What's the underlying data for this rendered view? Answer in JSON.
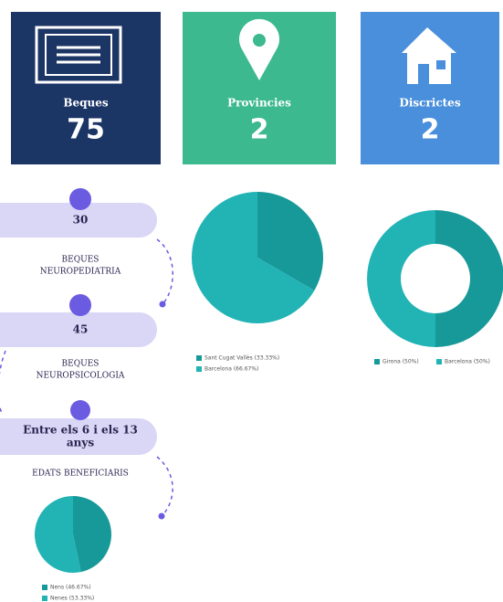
{
  "cards": [
    {
      "label": "Beques",
      "value": "75"
    },
    {
      "label": "Provincies",
      "value": "2"
    },
    {
      "label": "Discrictes",
      "value": "2"
    }
  ],
  "steps": [
    {
      "value": [
        "30"
      ],
      "label": [
        "BEQUES",
        "NEUROPEDIATRIA"
      ]
    },
    {
      "value": [
        "45"
      ],
      "label": [
        "BEQUES",
        "NEUROPSICOLOGIA"
      ]
    },
    {
      "value": [
        "Entre els 6  i els 13",
        "anys"
      ],
      "label": [
        "EDATS  BENEFICIARIS"
      ]
    }
  ],
  "chart_data": [
    {
      "type": "pie",
      "categories": [
        "Sant Cugat Vallès (33.33%)",
        "Barcelona (66.67%)"
      ],
      "values": [
        33.33,
        66.67
      ],
      "colors": [
        "#17999a",
        "#22b3b5"
      ]
    },
    {
      "type": "donut",
      "categories": [
        "Girona (50%)",
        "Barcelona (50%)"
      ],
      "values": [
        50,
        50
      ],
      "colors": [
        "#17999a",
        "#22b3b5"
      ]
    },
    {
      "type": "pie",
      "categories": [
        "Nens (46.67%)",
        "Nenes (53.33%)"
      ],
      "values": [
        46.67,
        53.33
      ],
      "colors": [
        "#17999a",
        "#22b3b5"
      ]
    }
  ]
}
